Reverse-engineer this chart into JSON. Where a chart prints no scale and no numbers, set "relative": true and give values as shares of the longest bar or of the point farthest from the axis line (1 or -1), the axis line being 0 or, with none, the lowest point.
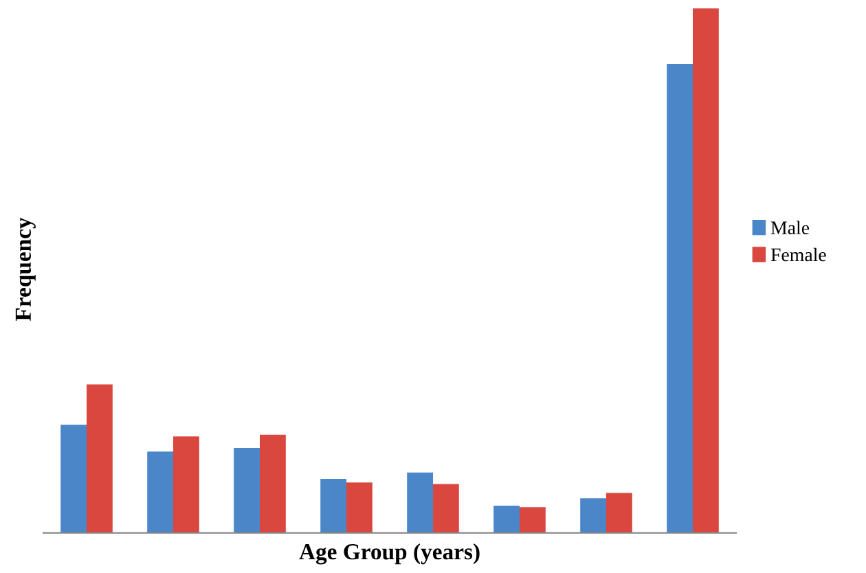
{
  "chart_data": {
    "type": "bar",
    "relative": true,
    "xlabel": "Age Group (years)",
    "ylabel": "Frequency",
    "categories": [
      null,
      null,
      null,
      null,
      null,
      null,
      null,
      null
    ],
    "series": [
      {
        "name": "Male",
        "color": "#4a86c8",
        "values": [
          0.206,
          0.155,
          0.162,
          0.103,
          0.115,
          0.052,
          0.066,
          0.894
        ]
      },
      {
        "name": "Female",
        "color": "#d9473f",
        "values": [
          0.283,
          0.184,
          0.187,
          0.096,
          0.093,
          0.049,
          0.076,
          1.0
        ]
      }
    ],
    "legend": "right",
    "grid": false
  }
}
